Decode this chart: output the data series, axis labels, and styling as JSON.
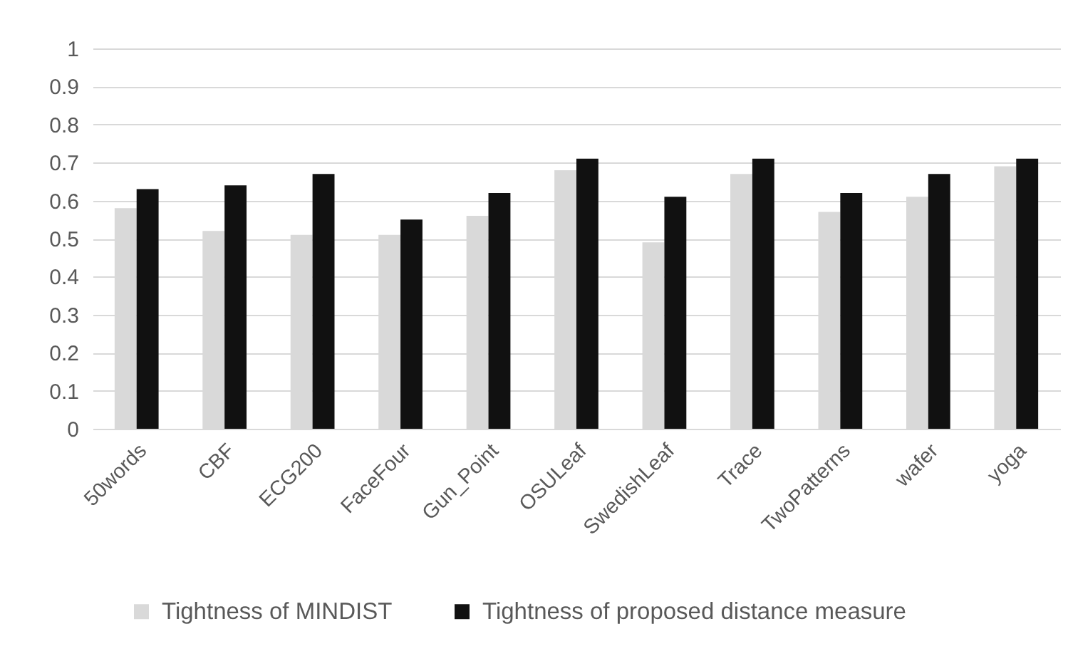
{
  "chart_data": {
    "type": "bar",
    "categories": [
      "50words",
      "CBF",
      "ECG200",
      "FaceFour",
      "Gun_Point",
      "OSULeaf",
      "SwedishLeaf",
      "Trace",
      "TwoPatterns",
      "wafer",
      "yoga"
    ],
    "series": [
      {
        "name": "Tightness of MINDIST",
        "color": "#d9d9d9",
        "values": [
          0.58,
          0.52,
          0.51,
          0.51,
          0.56,
          0.68,
          0.49,
          0.67,
          0.57,
          0.61,
          0.69
        ]
      },
      {
        "name": "Tightness of proposed distance measure",
        "color": "#111111",
        "values": [
          0.63,
          0.64,
          0.67,
          0.55,
          0.62,
          0.71,
          0.61,
          0.71,
          0.62,
          0.67,
          0.71
        ]
      }
    ],
    "ylim": [
      0,
      1
    ],
    "yticks": [
      0,
      0.1,
      0.2,
      0.3,
      0.4,
      0.5,
      0.6,
      0.7,
      0.8,
      0.9,
      1
    ],
    "grid": "y",
    "legend": "bottom"
  }
}
